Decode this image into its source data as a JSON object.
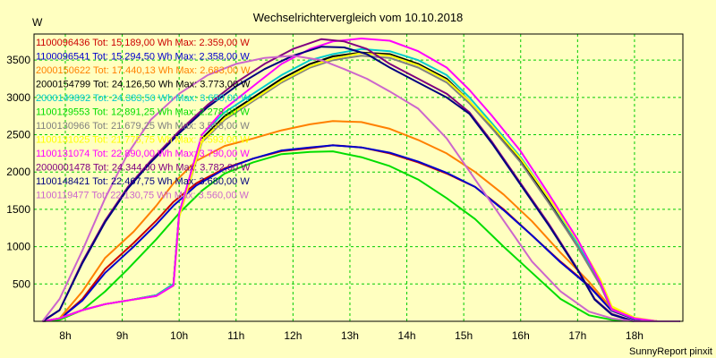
{
  "chart_data": {
    "type": "line",
    "title": "Wechselrichtervergleich vom 10.10.2018",
    "ylabel": "W",
    "footer": "SunnyReport pinxit",
    "xlim": [
      7.45,
      18.85
    ],
    "ylim": [
      0,
      3850
    ],
    "y_ticks": [
      500,
      1000,
      1500,
      2000,
      2500,
      3000,
      3500
    ],
    "x_ticks": [
      {
        "value": 8,
        "label": "8h"
      },
      {
        "value": 9,
        "label": "9h"
      },
      {
        "value": 10,
        "label": "10h"
      },
      {
        "value": 11,
        "label": "11h"
      },
      {
        "value": 12,
        "label": "12h"
      },
      {
        "value": 13,
        "label": "13h"
      },
      {
        "value": 14,
        "label": "14h"
      },
      {
        "value": 15,
        "label": "15h"
      },
      {
        "value": 16,
        "label": "16h"
      },
      {
        "value": 17,
        "label": "17h"
      },
      {
        "value": 18,
        "label": "18h"
      }
    ],
    "grid": true,
    "legend_position": "top-left",
    "series": [
      {
        "name": "1100096436",
        "label": "1100096436 Tot: 15.189,00 Wh Max: 2.359,00 W",
        "color": "#cc0000",
        "x": [
          7.6,
          7.9,
          8.3,
          8.7,
          9.2,
          9.6,
          9.9,
          10.3,
          10.8,
          11.3,
          11.8,
          12.3,
          12.7,
          13.2,
          13.7,
          14.2,
          14.7,
          15.2,
          15.7,
          16.2,
          16.7,
          17.2,
          17.6,
          18.0,
          18.4,
          18.8
        ],
        "y": [
          0,
          30,
          300,
          700,
          1050,
          1350,
          1600,
          1850,
          2050,
          2180,
          2280,
          2320,
          2360,
          2330,
          2250,
          2130,
          1980,
          1800,
          1500,
          1150,
          800,
          480,
          150,
          30,
          0,
          0
        ]
      },
      {
        "name": "1100096541",
        "label": "1100096541 Tot: 15.294,50 Wh Max: 2.358,00 W",
        "color": "#0000cc",
        "x": [
          7.6,
          7.9,
          8.3,
          8.7,
          9.2,
          9.6,
          9.9,
          10.3,
          10.8,
          11.3,
          11.8,
          12.3,
          12.7,
          13.2,
          13.7,
          14.2,
          14.7,
          15.2,
          15.7,
          16.2,
          16.7,
          17.2,
          17.6,
          18.0,
          18.4,
          18.8
        ],
        "y": [
          0,
          30,
          280,
          650,
          1000,
          1300,
          1550,
          1820,
          2040,
          2180,
          2290,
          2330,
          2358,
          2330,
          2260,
          2140,
          1990,
          1800,
          1490,
          1150,
          790,
          470,
          140,
          30,
          0,
          0
        ]
      },
      {
        "name": "2000150622",
        "label": "2000150622 Tot: 17.440,13 Wh Max: 2.683,00 W",
        "color": "#ff8000",
        "x": [
          7.6,
          7.9,
          8.3,
          8.7,
          9.2,
          9.6,
          9.9,
          10.3,
          10.8,
          11.3,
          11.8,
          12.3,
          12.7,
          13.2,
          13.7,
          14.2,
          14.7,
          15.2,
          15.7,
          16.2,
          16.7,
          17.2,
          17.6,
          18.0,
          18.4,
          18.8
        ],
        "y": [
          0,
          40,
          400,
          850,
          1200,
          1550,
          1850,
          2150,
          2350,
          2450,
          2560,
          2640,
          2683,
          2670,
          2580,
          2430,
          2250,
          2000,
          1700,
          1340,
          920,
          530,
          170,
          40,
          0,
          0
        ]
      },
      {
        "name": "2000154799",
        "label": "2000154799 Tot: 24.126,50 Wh Max: 3.773,00 W",
        "color": "#000000",
        "x": [
          7.6,
          7.9,
          8.3,
          8.7,
          9.1,
          9.6,
          9.9,
          10.0,
          10.4,
          10.8,
          11.3,
          11.8,
          12.3,
          12.7,
          13.2,
          13.7,
          14.2,
          14.7,
          15.1,
          15.5,
          16.0,
          16.5,
          17.0,
          17.4,
          17.6,
          18.0,
          18.4,
          18.8
        ],
        "y": [
          0,
          40,
          150,
          230,
          280,
          350,
          500,
          1450,
          2450,
          2750,
          3000,
          3250,
          3450,
          3550,
          3600,
          3580,
          3450,
          3250,
          2950,
          2600,
          2150,
          1600,
          1000,
          500,
          150,
          40,
          0,
          0
        ]
      },
      {
        "name": "2000149892",
        "label": "2000149892 Tot: 24.383,50 Wh Max: 3.650,00 W",
        "color": "#00cccc",
        "x": [
          7.6,
          7.9,
          8.3,
          8.7,
          9.1,
          9.6,
          9.9,
          10.0,
          10.4,
          10.8,
          11.3,
          11.8,
          12.3,
          12.7,
          13.2,
          13.7,
          14.2,
          14.7,
          15.1,
          15.5,
          16.0,
          16.5,
          17.0,
          17.4,
          17.6,
          18.0,
          18.4,
          18.8
        ],
        "y": [
          0,
          40,
          150,
          230,
          280,
          350,
          500,
          1450,
          2500,
          2800,
          3050,
          3300,
          3500,
          3580,
          3650,
          3620,
          3500,
          3300,
          3000,
          2650,
          2200,
          1650,
          1050,
          520,
          160,
          40,
          0,
          0
        ]
      },
      {
        "name": "1100129553",
        "label": "1100129553 Tot: 12.891,25 Wh Max: 2.278,00 W",
        "color": "#00dd00",
        "x": [
          7.6,
          7.9,
          8.3,
          8.7,
          9.1,
          9.6,
          10.0,
          10.4,
          10.8,
          11.3,
          11.8,
          12.3,
          12.7,
          13.2,
          13.7,
          14.2,
          14.7,
          15.2,
          15.7,
          16.2,
          16.7,
          17.2,
          17.6,
          18.0,
          18.4,
          18.8
        ],
        "y": [
          0,
          20,
          150,
          400,
          700,
          1100,
          1450,
          1750,
          1980,
          2130,
          2240,
          2270,
          2278,
          2200,
          2080,
          1900,
          1650,
          1370,
          1000,
          650,
          300,
          80,
          20,
          0,
          0,
          0
        ]
      },
      {
        "name": "1100130966",
        "label": "1100130966 Tot: 21.679,25 Wh Max: 3.558,00 W",
        "color": "#808080",
        "x": [
          7.6,
          7.9,
          8.3,
          8.7,
          9.1,
          9.6,
          9.9,
          10.0,
          10.4,
          10.8,
          11.3,
          11.8,
          12.3,
          12.7,
          13.2,
          13.7,
          14.2,
          14.7,
          15.1,
          15.5,
          16.0,
          16.5,
          17.0,
          17.4,
          17.6,
          18.0,
          18.4,
          18.8
        ],
        "y": [
          0,
          40,
          150,
          230,
          280,
          340,
          480,
          1400,
          2400,
          2700,
          2950,
          3200,
          3400,
          3500,
          3558,
          3530,
          3400,
          3200,
          2920,
          2580,
          2130,
          1580,
          1000,
          480,
          150,
          40,
          0,
          0
        ]
      },
      {
        "name": "1100131025",
        "label": "1100131025 Tot: 21.775,75 Wh Max: 3.593,00 W",
        "color": "#ffff00",
        "x": [
          7.6,
          7.9,
          8.3,
          8.7,
          9.1,
          9.6,
          9.9,
          10.0,
          10.4,
          10.8,
          11.3,
          11.8,
          12.3,
          12.7,
          13.2,
          13.7,
          14.2,
          14.7,
          15.1,
          15.5,
          16.0,
          16.5,
          17.0,
          17.4,
          17.6,
          18.0,
          18.4,
          18.8
        ],
        "y": [
          0,
          40,
          150,
          230,
          280,
          340,
          480,
          1400,
          2420,
          2720,
          2970,
          3220,
          3420,
          3520,
          3593,
          3560,
          3430,
          3230,
          2950,
          2620,
          2180,
          1650,
          1080,
          560,
          200,
          50,
          0,
          0
        ]
      },
      {
        "name": "1100131074",
        "label": "1100131074 Tot: 22.890,00 Wh Max: 3.790,00 W",
        "color": "#ff00ff",
        "x": [
          7.6,
          7.9,
          8.3,
          8.7,
          9.1,
          9.6,
          9.9,
          10.0,
          10.4,
          10.8,
          11.3,
          11.8,
          12.3,
          12.7,
          13.2,
          13.7,
          14.2,
          14.7,
          15.1,
          15.5,
          16.0,
          16.5,
          17.0,
          17.4,
          17.6,
          18.0,
          18.4,
          18.8
        ],
        "y": [
          0,
          40,
          150,
          230,
          280,
          340,
          480,
          1450,
          2500,
          2850,
          3150,
          3450,
          3650,
          3750,
          3790,
          3760,
          3620,
          3400,
          3100,
          2750,
          2280,
          1700,
          1100,
          520,
          160,
          40,
          0,
          0
        ]
      },
      {
        "name": "2000001478",
        "label": "2000001478 Tot: 24.344,00 Wh Max: 3.782,00 W",
        "color": "#800080",
        "x": [
          7.6,
          7.9,
          8.3,
          8.7,
          9.1,
          9.5,
          10.0,
          10.5,
          11.0,
          11.5,
          12.0,
          12.5,
          12.9,
          13.3,
          13.7,
          14.2,
          14.7,
          15.1,
          15.5,
          16.0,
          16.5,
          17.0,
          17.3,
          17.6,
          18.0,
          18.4,
          18.8
        ],
        "y": [
          0,
          150,
          800,
          1350,
          1800,
          2150,
          2550,
          2900,
          3200,
          3450,
          3650,
          3782,
          3750,
          3650,
          3450,
          3250,
          3050,
          2800,
          2400,
          1850,
          1300,
          700,
          300,
          100,
          0,
          0,
          0
        ]
      },
      {
        "name": "1100148421",
        "label": "1100148421 Tot: 22.467,75 Wh Max: 3.680,00 W",
        "color": "#000080",
        "x": [
          7.6,
          7.9,
          8.3,
          8.7,
          9.1,
          9.5,
          10.0,
          10.5,
          11.0,
          11.5,
          12.0,
          12.5,
          12.9,
          13.3,
          13.7,
          14.2,
          14.7,
          15.1,
          15.5,
          16.0,
          16.5,
          17.0,
          17.3,
          17.6,
          18.0,
          18.4,
          18.8
        ],
        "y": [
          0,
          150,
          780,
          1330,
          1780,
          2130,
          2520,
          2870,
          3150,
          3380,
          3560,
          3680,
          3670,
          3580,
          3400,
          3200,
          3000,
          2780,
          2380,
          1830,
          1280,
          690,
          290,
          90,
          0,
          0,
          0
        ]
      },
      {
        "name": "1100119477",
        "label": "1100119477 Tot: 22.130,75 Wh Max: 3.560,00 W",
        "color": "#cc66cc",
        "x": [
          7.6,
          7.9,
          8.3,
          8.7,
          9.1,
          9.5,
          10.0,
          10.5,
          11.0,
          11.5,
          12.0,
          12.5,
          12.9,
          13.3,
          13.7,
          14.2,
          14.7,
          15.2,
          15.7,
          16.2,
          16.7,
          17.2,
          17.6,
          18.0,
          18.4,
          18.8
        ],
        "y": [
          0,
          300,
          950,
          1650,
          2250,
          2700,
          3050,
          3300,
          3450,
          3530,
          3560,
          3500,
          3380,
          3250,
          3080,
          2850,
          2450,
          1900,
          1350,
          800,
          400,
          130,
          40,
          0,
          0,
          0
        ]
      }
    ]
  }
}
